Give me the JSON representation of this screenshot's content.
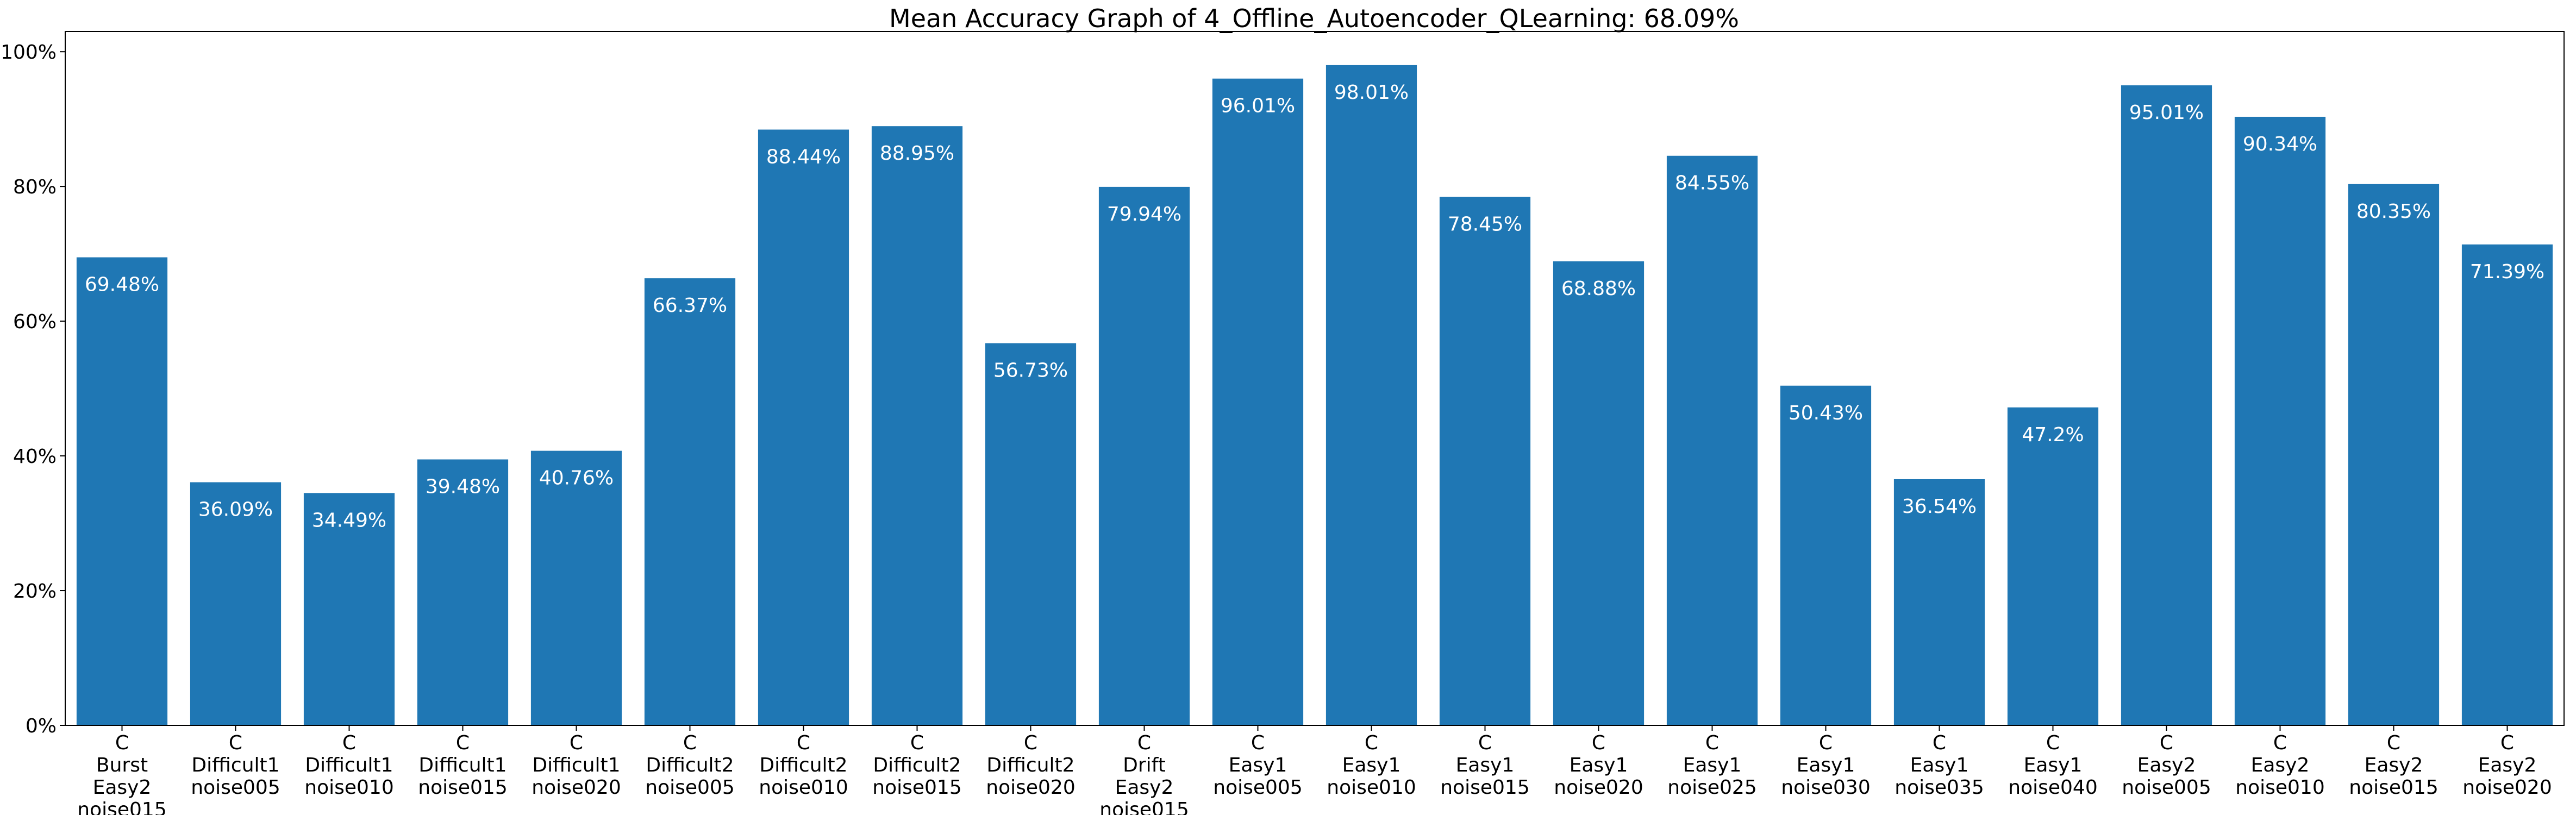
{
  "chart_data": {
    "type": "bar",
    "title": "Mean Accuracy Graph of 4_Offline_Autoencoder_QLearning: 68.09%",
    "xlabel": "",
    "ylabel": "",
    "ylim": [
      0,
      103
    ],
    "y_ticks": [
      0,
      20,
      40,
      60,
      80,
      100
    ],
    "y_tick_labels": [
      "0%",
      "20%",
      "40%",
      "60%",
      "80%",
      "100%"
    ],
    "grid": false,
    "bar_color": "#1f77b4",
    "label_color": "#ffffff",
    "categories": [
      [
        "C",
        "Burst",
        "Easy2",
        "noise015"
      ],
      [
        "C",
        "Difficult1",
        "noise005"
      ],
      [
        "C",
        "Difficult1",
        "noise010"
      ],
      [
        "C",
        "Difficult1",
        "noise015"
      ],
      [
        "C",
        "Difficult1",
        "noise020"
      ],
      [
        "C",
        "Difficult2",
        "noise005"
      ],
      [
        "C",
        "Difficult2",
        "noise010"
      ],
      [
        "C",
        "Difficult2",
        "noise015"
      ],
      [
        "C",
        "Difficult2",
        "noise020"
      ],
      [
        "C",
        "Drift",
        "Easy2",
        "noise015"
      ],
      [
        "C",
        "Easy1",
        "noise005"
      ],
      [
        "C",
        "Easy1",
        "noise010"
      ],
      [
        "C",
        "Easy1",
        "noise015"
      ],
      [
        "C",
        "Easy1",
        "noise020"
      ],
      [
        "C",
        "Easy1",
        "noise025"
      ],
      [
        "C",
        "Easy1",
        "noise030"
      ],
      [
        "C",
        "Easy1",
        "noise035"
      ],
      [
        "C",
        "Easy1",
        "noise040"
      ],
      [
        "C",
        "Easy2",
        "noise005"
      ],
      [
        "C",
        "Easy2",
        "noise010"
      ],
      [
        "C",
        "Easy2",
        "noise015"
      ],
      [
        "C",
        "Easy2",
        "noise020"
      ]
    ],
    "values": [
      69.48,
      36.09,
      34.49,
      39.48,
      40.76,
      66.37,
      88.44,
      88.95,
      56.73,
      79.94,
      96.01,
      98.01,
      78.45,
      68.88,
      84.55,
      50.43,
      36.54,
      47.2,
      95.01,
      90.34,
      80.35,
      71.39
    ],
    "value_labels": [
      "69.48%",
      "36.09%",
      "34.49%",
      "39.48%",
      "40.76%",
      "66.37%",
      "88.44%",
      "88.95%",
      "56.73%",
      "79.94%",
      "96.01%",
      "98.01%",
      "78.45%",
      "68.88%",
      "84.55%",
      "50.43%",
      "36.54%",
      "47.2%",
      "95.01%",
      "90.34%",
      "80.35%",
      "71.39%"
    ]
  }
}
